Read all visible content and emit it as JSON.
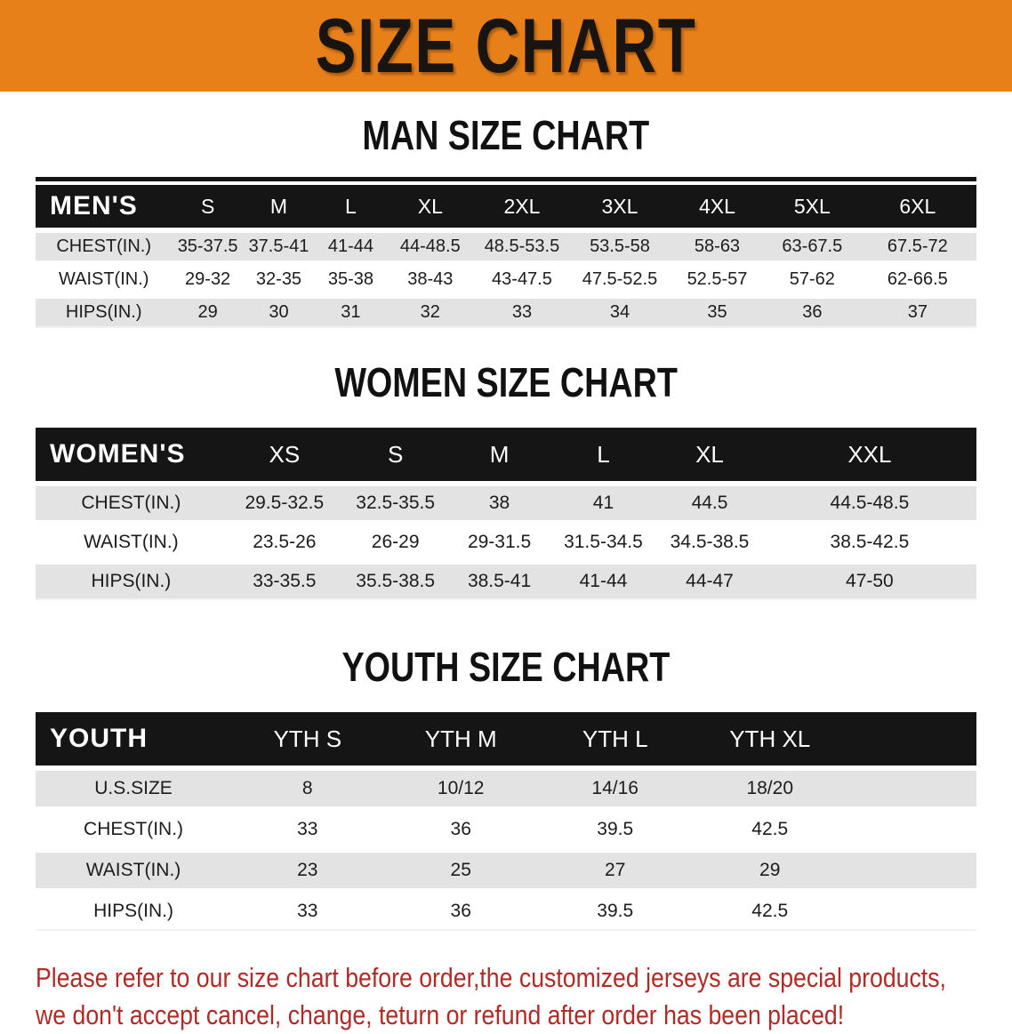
{
  "banner": {
    "title": "SIZE CHART",
    "bg_color": "#e8801a",
    "text_color": "#181411"
  },
  "sections": [
    {
      "heading": "MAN SIZE CHART",
      "table": {
        "label": "MEN'S",
        "columns": [
          "S",
          "M",
          "L",
          "XL",
          "2XL",
          "3XL",
          "4XL",
          "5XL",
          "6XL"
        ],
        "rows": [
          {
            "label": "CHEST(IN.)",
            "values": [
              "35-37.5",
              "37.5-41",
              "41-44",
              "44-48.5",
              "48.5-53.5",
              "53.5-58",
              "58-63",
              "63-67.5",
              "67.5-72"
            ]
          },
          {
            "label": "WAIST(IN.)",
            "values": [
              "29-32",
              "32-35",
              "35-38",
              "38-43",
              "43-47.5",
              "47.5-52.5",
              "52.5-57",
              "57-62",
              "62-66.5"
            ]
          },
          {
            "label": "HIPS(IN.)",
            "values": [
              "29",
              "30",
              "31",
              "32",
              "33",
              "34",
              "35",
              "36",
              "37"
            ]
          }
        ]
      }
    },
    {
      "heading": "WOMEN SIZE CHART",
      "table": {
        "label": "WOMEN'S",
        "columns": [
          "XS",
          "S",
          "M",
          "L",
          "XL",
          "XXL"
        ],
        "rows": [
          {
            "label": "CHEST(IN.)",
            "values": [
              "29.5-32.5",
              "32.5-35.5",
              "38",
              "41",
              "44.5",
              "44.5-48.5"
            ]
          },
          {
            "label": "WAIST(IN.)",
            "values": [
              "23.5-26",
              "26-29",
              "29-31.5",
              "31.5-34.5",
              "34.5-38.5",
              "38.5-42.5"
            ]
          },
          {
            "label": "HIPS(IN.)",
            "values": [
              "33-35.5",
              "35.5-38.5",
              "38.5-41",
              "41-44",
              "44-47",
              "47-50"
            ]
          }
        ]
      }
    },
    {
      "heading": "YOUTH SIZE CHART",
      "table": {
        "label": "YOUTH",
        "columns": [
          "YTH S",
          "YTH M",
          "YTH L",
          "YTH XL"
        ],
        "rows": [
          {
            "label": "U.S.SIZE",
            "values": [
              "8",
              "10/12",
              "14/16",
              "18/20"
            ]
          },
          {
            "label": "CHEST(IN.)",
            "values": [
              "33",
              "36",
              "39.5",
              "42.5"
            ]
          },
          {
            "label": "WAIST(IN.)",
            "values": [
              "23",
              "25",
              "27",
              "29"
            ]
          },
          {
            "label": "HIPS(IN.)",
            "values": [
              "33",
              "36",
              "39.5",
              "42.5"
            ]
          }
        ]
      }
    }
  ],
  "footer": {
    "text_color": "#b02b26",
    "lines": [
      "Please refer to our size chart before order,the customized jerseys are special products,",
      "we don't accept cancel, change, teturn or refund after order has been placed!"
    ]
  }
}
